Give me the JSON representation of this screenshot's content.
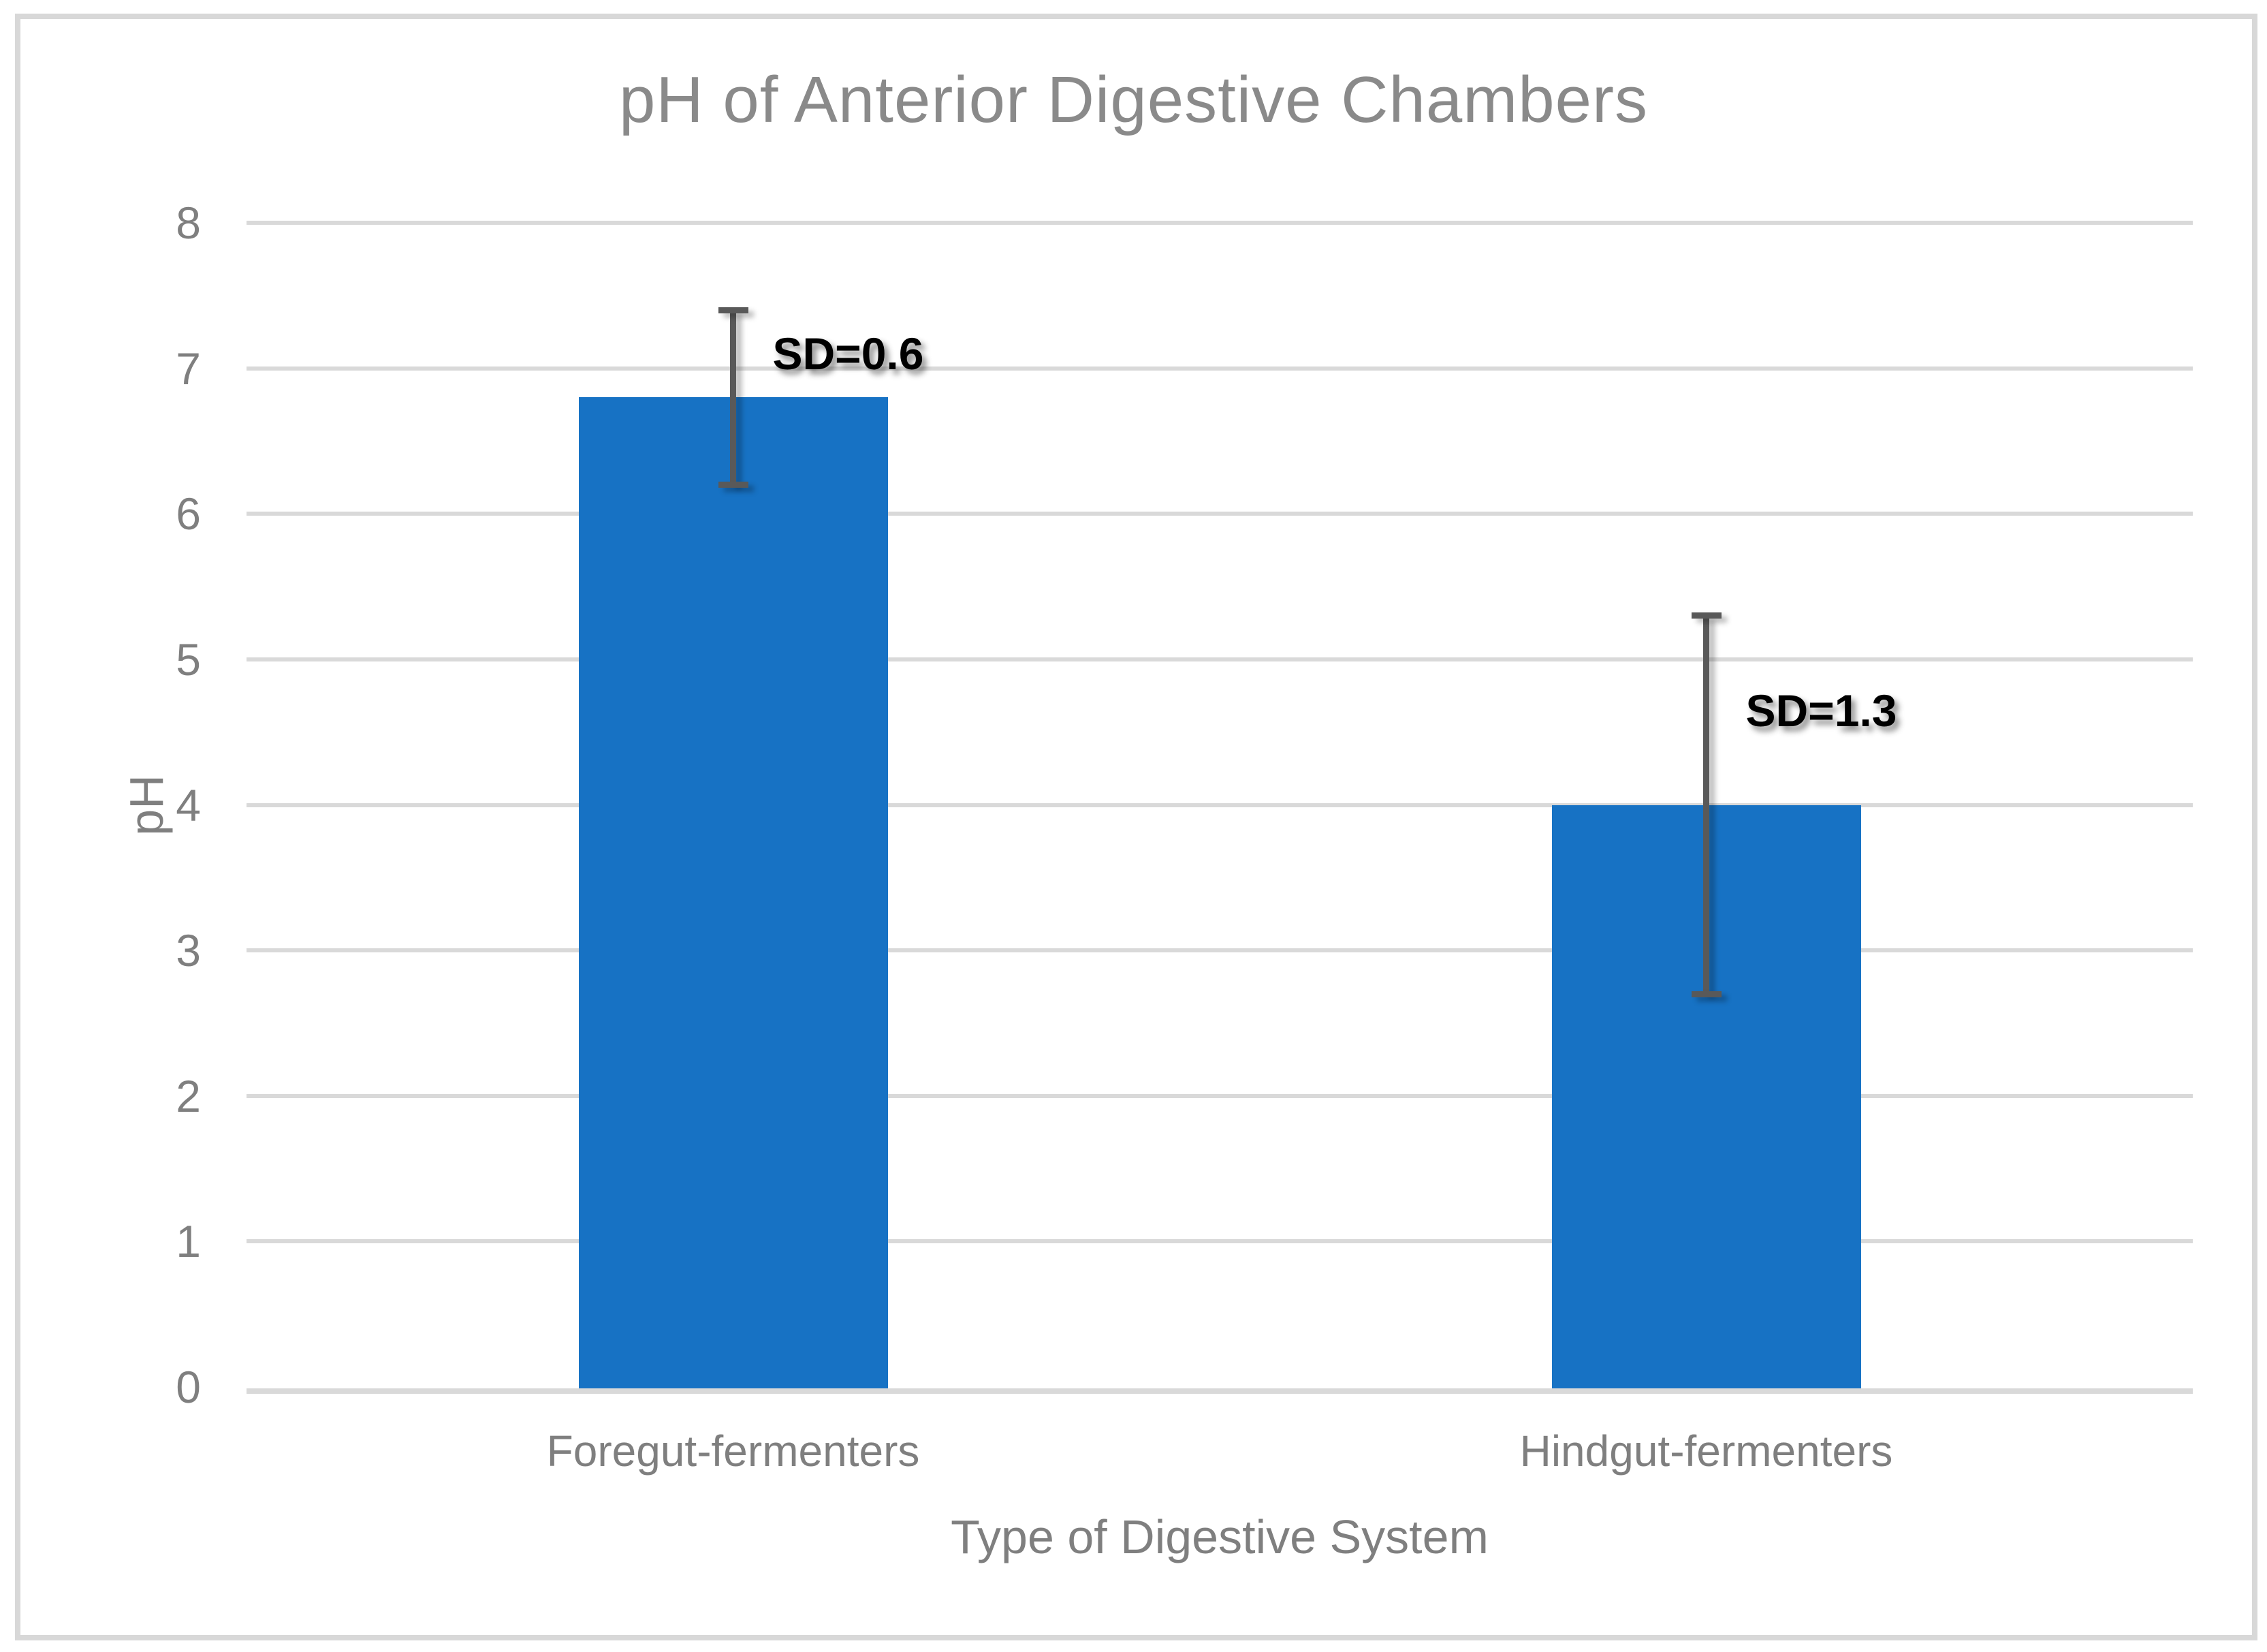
{
  "chart_data": {
    "type": "bar",
    "title": "pH of Anterior Digestive Chambers",
    "xlabel": "Type of Digestive System",
    "ylabel": "pH",
    "categories": [
      "Foregut-fermenters",
      "Hindgut-fermenters"
    ],
    "values": [
      6.8,
      4.0
    ],
    "sd": [
      0.6,
      1.3
    ],
    "error_labels": [
      "SD=0.6",
      "SD=1.3"
    ],
    "error_bar_ranges": [
      [
        6.2,
        7.4
      ],
      [
        2.7,
        5.3
      ]
    ],
    "ylim": [
      0,
      8
    ],
    "yticks": [
      0,
      1,
      2,
      3,
      4,
      5,
      6,
      7,
      8
    ],
    "grid": "horizontal",
    "legend": "none",
    "colors": {
      "bar": "#1772C4",
      "gridline": "#D9D9D9",
      "error_bar": "#595959",
      "tick_text": "#7F7F7F",
      "title_text": "#8A8A8A",
      "sd_label_text": "#000000",
      "frame_border": "#D8D8D8",
      "background": "#FFFFFF"
    }
  }
}
